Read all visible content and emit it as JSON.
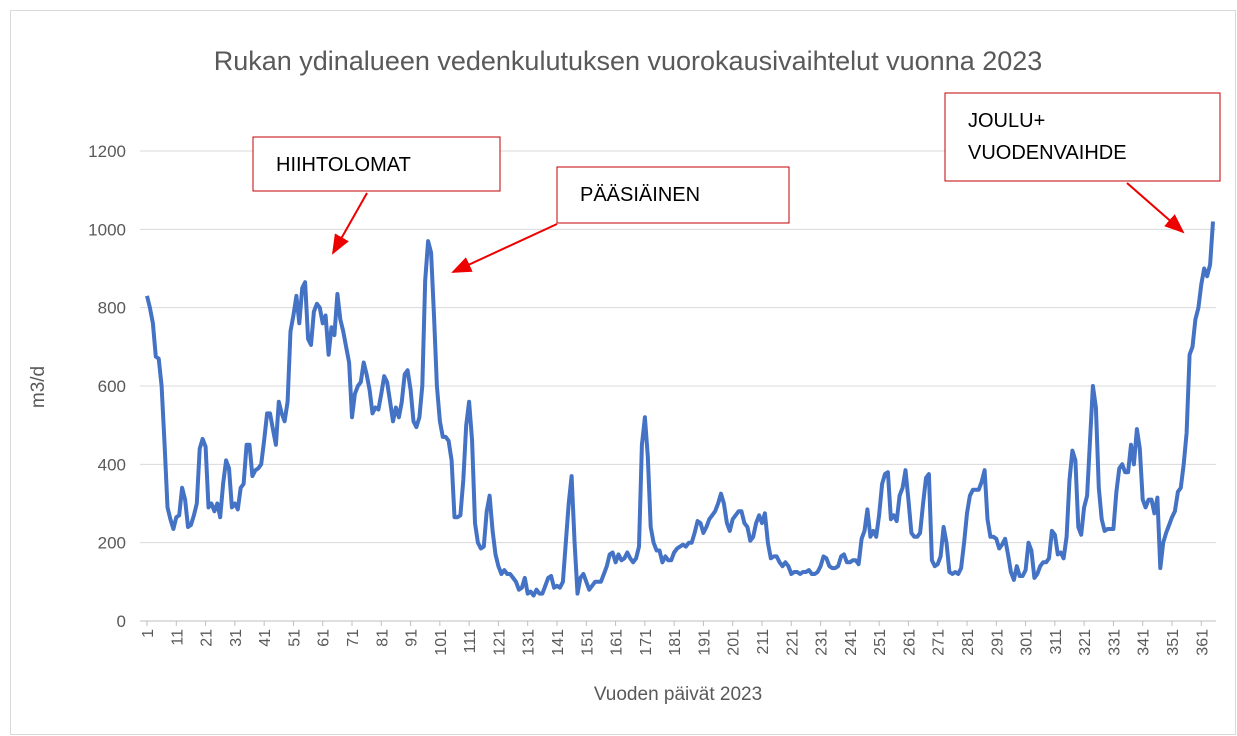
{
  "chart_data": {
    "type": "line",
    "title": "Rukan ydinalueen vedenkulutuksen vuorokausivaihtelut vuonna 2023",
    "x_label": "Vuoden päivät 2023",
    "y_label": "m3/d",
    "xlim": [
      1,
      365
    ],
    "ylim": [
      0,
      1200
    ],
    "yticks": [
      0,
      200,
      400,
      600,
      800,
      1000,
      1200
    ],
    "xticks": [
      1,
      11,
      21,
      31,
      41,
      51,
      61,
      71,
      81,
      91,
      101,
      111,
      121,
      131,
      141,
      151,
      161,
      171,
      181,
      191,
      201,
      211,
      221,
      231,
      241,
      251,
      261,
      271,
      281,
      291,
      301,
      311,
      321,
      331,
      341,
      351,
      361
    ],
    "grid": true,
    "annotations": [
      {
        "text": [
          "HIIHTOLOMAT"
        ]
      },
      {
        "text": [
          "PÄÄSIÄINEN"
        ]
      },
      {
        "text": [
          "JOULU+",
          "VUODENVAIHDE"
        ]
      }
    ],
    "series": [
      {
        "color": "#4472c4",
        "x": [
          1,
          2,
          3,
          4,
          5,
          6,
          7,
          8,
          9,
          10,
          11,
          12,
          13,
          14,
          15,
          16,
          17,
          18,
          19,
          20,
          21,
          22,
          23,
          24,
          25,
          26,
          27,
          28,
          29,
          30,
          31,
          32,
          33,
          34,
          35,
          36,
          37,
          38,
          39,
          40,
          41,
          42,
          43,
          44,
          45,
          46,
          47,
          48,
          49,
          50,
          51,
          52,
          53,
          54,
          55,
          56,
          57,
          58,
          59,
          60,
          61,
          62,
          63,
          64,
          65,
          66,
          67,
          68,
          69,
          70,
          71,
          72,
          73,
          74,
          75,
          76,
          77,
          78,
          79,
          80,
          81,
          82,
          83,
          84,
          85,
          86,
          87,
          88,
          89,
          90,
          91,
          92,
          93,
          94,
          95,
          96,
          97,
          98,
          99,
          100,
          101,
          102,
          103,
          104,
          105,
          106,
          107,
          108,
          109,
          110,
          111,
          112,
          113,
          114,
          115,
          116,
          117,
          118,
          119,
          120,
          121,
          122,
          123,
          124,
          125,
          126,
          127,
          128,
          129,
          130,
          131,
          132,
          133,
          134,
          135,
          136,
          137,
          138,
          139,
          140,
          141,
          142,
          143,
          144,
          145,
          146,
          147,
          148,
          149,
          150,
          151,
          152,
          153,
          154,
          155,
          156,
          157,
          158,
          159,
          160,
          161,
          162,
          163,
          164,
          165,
          166,
          167,
          168,
          169,
          170,
          171,
          172,
          173,
          174,
          175,
          176,
          177,
          178,
          179,
          180,
          181,
          182,
          183,
          184,
          185,
          186,
          187,
          188,
          189,
          190,
          191,
          192,
          193,
          194,
          195,
          196,
          197,
          198,
          199,
          200,
          201,
          202,
          203,
          204,
          205,
          206,
          207,
          208,
          209,
          210,
          211,
          212,
          213,
          214,
          215,
          216,
          217,
          218,
          219,
          220,
          221,
          222,
          223,
          224,
          225,
          226,
          227,
          228,
          229,
          230,
          231,
          232,
          233,
          234,
          235,
          236,
          237,
          238,
          239,
          240,
          241,
          242,
          243,
          244,
          245,
          246,
          247,
          248,
          249,
          250,
          251,
          252,
          253,
          254,
          255,
          256,
          257,
          258,
          259,
          260,
          261,
          262,
          263,
          264,
          265,
          266,
          267,
          268,
          269,
          270,
          271,
          272,
          273,
          274,
          275,
          276,
          277,
          278,
          279,
          280,
          281,
          282,
          283,
          284,
          285,
          286,
          287,
          288,
          289,
          290,
          291,
          292,
          293,
          294,
          295,
          296,
          297,
          298,
          299,
          300,
          301,
          302,
          303,
          304,
          305,
          306,
          307,
          308,
          309,
          310,
          311,
          312,
          313,
          314,
          315,
          316,
          317,
          318,
          319,
          320,
          321,
          322,
          323,
          324,
          325,
          326,
          327,
          328,
          329,
          330,
          331,
          332,
          333,
          334,
          335,
          336,
          337,
          338,
          339,
          340,
          341,
          342,
          343,
          344,
          345,
          346,
          347,
          348,
          349,
          350,
          351,
          352,
          353,
          354,
          355,
          356,
          357,
          358,
          359,
          360,
          361,
          362,
          363,
          364,
          365
        ],
        "values": [
          830,
          800,
          760,
          675,
          670,
          600,
          450,
          290,
          260,
          235,
          265,
          270,
          340,
          310,
          240,
          245,
          270,
          300,
          440,
          465,
          445,
          290,
          300,
          280,
          300,
          265,
          350,
          410,
          390,
          290,
          300,
          285,
          340,
          350,
          450,
          450,
          370,
          385,
          390,
          400,
          460,
          530,
          530,
          490,
          450,
          560,
          530,
          510,
          560,
          740,
          780,
          830,
          760,
          850,
          865,
          720,
          705,
          790,
          810,
          800,
          760,
          780,
          680,
          750,
          730,
          835,
          770,
          740,
          700,
          660,
          520,
          580,
          600,
          610,
          660,
          630,
          590,
          530,
          545,
          540,
          580,
          625,
          610,
          560,
          510,
          545,
          520,
          560,
          630,
          640,
          590,
          510,
          495,
          520,
          600,
          870,
          970,
          940,
          780,
          600,
          510,
          470,
          470,
          460,
          410,
          265,
          265,
          270,
          360,
          500,
          560,
          460,
          250,
          200,
          185,
          190,
          280,
          320,
          230,
          170,
          140,
          120,
          130,
          120,
          120,
          110,
          100,
          80,
          85,
          110,
          70,
          75,
          65,
          80,
          70,
          70,
          90,
          110,
          115,
          85,
          90,
          85,
          100,
          200,
          300,
          370,
          200,
          70,
          110,
          120,
          100,
          80,
          90,
          100,
          100,
          100,
          120,
          140,
          170,
          175,
          150,
          170,
          155,
          160,
          175,
          160,
          150,
          160,
          190,
          450,
          520,
          420,
          240,
          200,
          180,
          180,
          150,
          165,
          155,
          155,
          175,
          185,
          190,
          195,
          190,
          200,
          200,
          225,
          255,
          250,
          225,
          240,
          260,
          270,
          280,
          300,
          325,
          300,
          250,
          230,
          260,
          270,
          280,
          280,
          250,
          240,
          205,
          215,
          250,
          270,
          250,
          275,
          200,
          160,
          165,
          165,
          150,
          140,
          150,
          140,
          120,
          125,
          125,
          120,
          125,
          125,
          130,
          120,
          120,
          125,
          140,
          165,
          160,
          140,
          135,
          135,
          140,
          165,
          170,
          150,
          150,
          155,
          155,
          145,
          210,
          230,
          285,
          215,
          230,
          215,
          270,
          350,
          375,
          380,
          260,
          270,
          255,
          320,
          340,
          385,
          310,
          225,
          215,
          215,
          225,
          300,
          365,
          375,
          155,
          140,
          145,
          165,
          240,
          200,
          125,
          120,
          125,
          120,
          135,
          200,
          275,
          320,
          335,
          335,
          335,
          355,
          385,
          260,
          215,
          215,
          210,
          185,
          195,
          210,
          170,
          125,
          105,
          140,
          115,
          115,
          130,
          200,
          180,
          110,
          120,
          140,
          150,
          150,
          160,
          230,
          220,
          170,
          175,
          160,
          215,
          360,
          435,
          410,
          240,
          220,
          290,
          320,
          460,
          600,
          545,
          340,
          260,
          230,
          235,
          235,
          235,
          330,
          390,
          400,
          380,
          380,
          450,
          400,
          490,
          440,
          310,
          290,
          310,
          310,
          275,
          315,
          135,
          200,
          225,
          245,
          265,
          280,
          330,
          340,
          400,
          480,
          680,
          700,
          770,
          800,
          860,
          900,
          880,
          910,
          1020
        ]
      }
    ]
  }
}
